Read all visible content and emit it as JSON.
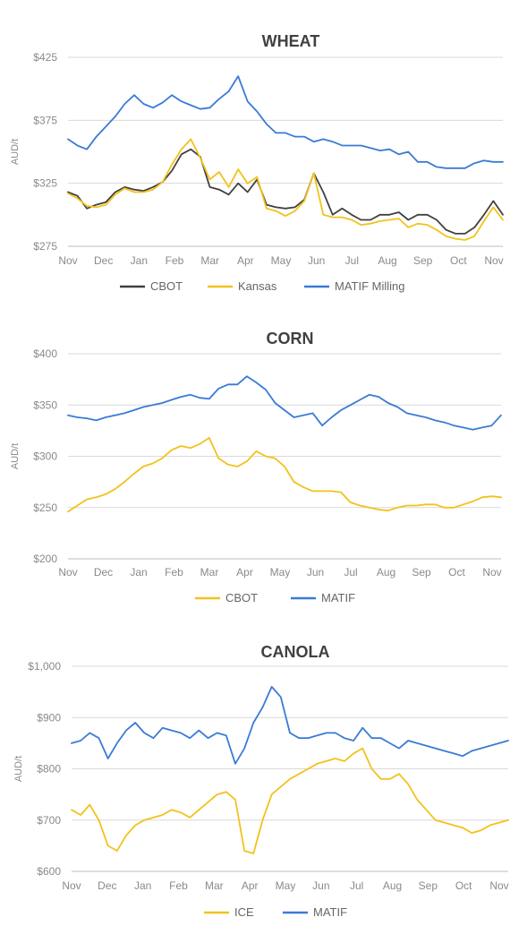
{
  "chart_data": [
    {
      "type": "line",
      "title": "WHEAT",
      "ylabel": "AUD/t",
      "ylim": [
        275,
        425
      ],
      "yticks": [
        275,
        325,
        375,
        425
      ],
      "ytick_labels": [
        "$275",
        "$325",
        "$375",
        "$425"
      ],
      "x_labels": [
        "Nov",
        "Dec",
        "Jan",
        "Feb",
        "Mar",
        "Apr",
        "May",
        "Jun",
        "Jul",
        "Aug",
        "Sep",
        "Oct",
        "Nov"
      ],
      "grid": true,
      "legend": "bottom",
      "series": [
        {
          "name": "CBOT",
          "color": "#404040",
          "values": [
            318,
            315,
            305,
            308,
            310,
            318,
            322,
            320,
            319,
            322,
            326,
            335,
            348,
            352,
            346,
            322,
            320,
            316,
            325,
            318,
            328,
            308,
            306,
            305,
            306,
            312,
            333,
            318,
            300,
            305,
            300,
            296,
            296,
            300,
            300,
            302,
            296,
            300,
            300,
            296,
            288,
            285,
            285,
            290,
            300,
            311,
            300
          ]
        },
        {
          "name": "Kansas",
          "color": "#f2c21b",
          "values": [
            317,
            313,
            307,
            306,
            308,
            316,
            321,
            318,
            318,
            320,
            326,
            340,
            352,
            360,
            345,
            328,
            334,
            322,
            336,
            325,
            330,
            305,
            303,
            299,
            303,
            311,
            333,
            300,
            298,
            298,
            296,
            292,
            293,
            295,
            296,
            297,
            290,
            293,
            292,
            288,
            283,
            281,
            280,
            283,
            295,
            306,
            296
          ]
        },
        {
          "name": "MATIF Milling",
          "color": "#3a7bd5",
          "values": [
            360,
            355,
            352,
            362,
            370,
            378,
            388,
            395,
            388,
            385,
            389,
            395,
            390,
            387,
            384,
            385,
            392,
            398,
            410,
            390,
            382,
            372,
            365,
            365,
            362,
            362,
            358,
            360,
            358,
            355,
            355,
            355,
            353,
            351,
            352,
            348,
            350,
            342,
            342,
            338,
            337,
            337,
            337,
            341,
            343,
            342,
            342
          ]
        }
      ]
    },
    {
      "type": "line",
      "title": "CORN",
      "ylabel": "AUD/t",
      "ylim": [
        200,
        400
      ],
      "yticks": [
        200,
        250,
        300,
        350,
        400
      ],
      "ytick_labels": [
        "$200",
        "$250",
        "$300",
        "$350",
        "$400"
      ],
      "x_labels": [
        "Nov",
        "Dec",
        "Jan",
        "Feb",
        "Mar",
        "Apr",
        "May",
        "Jun",
        "Jul",
        "Aug",
        "Sep",
        "Oct",
        "Nov"
      ],
      "grid": true,
      "legend": "bottom",
      "series": [
        {
          "name": "CBOT",
          "color": "#f2c21b",
          "values": [
            246,
            252,
            258,
            260,
            263,
            268,
            275,
            283,
            290,
            293,
            298,
            306,
            310,
            308,
            312,
            318,
            298,
            292,
            290,
            295,
            305,
            300,
            298,
            290,
            275,
            270,
            266,
            266,
            266,
            265,
            255,
            252,
            250,
            248,
            247,
            250,
            252,
            252,
            253,
            253,
            250,
            250,
            253,
            256,
            260,
            261,
            260
          ]
        },
        {
          "name": "MATIF",
          "color": "#3a7bd5",
          "values": [
            340,
            338,
            337,
            335,
            338,
            340,
            342,
            345,
            348,
            350,
            352,
            355,
            358,
            360,
            357,
            356,
            366,
            370,
            370,
            378,
            372,
            365,
            352,
            345,
            338,
            340,
            342,
            330,
            338,
            345,
            350,
            355,
            360,
            358,
            352,
            348,
            342,
            340,
            338,
            335,
            333,
            330,
            328,
            326,
            328,
            330,
            340
          ]
        }
      ]
    },
    {
      "type": "line",
      "title": "CANOLA",
      "ylabel": "AUD/t",
      "ylim": [
        600,
        1000
      ],
      "yticks": [
        600,
        700,
        800,
        900,
        1000
      ],
      "ytick_labels": [
        "$600",
        "$700",
        "$800",
        "$900",
        "$1,000"
      ],
      "x_labels": [
        "Nov",
        "Dec",
        "Jan",
        "Feb",
        "Mar",
        "Apr",
        "May",
        "Jun",
        "Jul",
        "Aug",
        "Sep",
        "Oct",
        "Nov"
      ],
      "grid": true,
      "legend": "bottom",
      "series": [
        {
          "name": "ICE",
          "color": "#f2c21b",
          "values": [
            720,
            710,
            730,
            700,
            650,
            640,
            670,
            690,
            700,
            705,
            710,
            720,
            715,
            705,
            720,
            735,
            750,
            755,
            740,
            640,
            635,
            700,
            750,
            765,
            780,
            790,
            800,
            810,
            815,
            820,
            815,
            830,
            840,
            800,
            780,
            780,
            790,
            770,
            740,
            720,
            700,
            695,
            690,
            685,
            675,
            680,
            690,
            695,
            700
          ]
        },
        {
          "name": "MATIF",
          "color": "#3a7bd5",
          "values": [
            850,
            855,
            870,
            860,
            820,
            850,
            875,
            890,
            870,
            860,
            880,
            875,
            870,
            860,
            875,
            860,
            870,
            865,
            810,
            840,
            890,
            920,
            960,
            940,
            870,
            860,
            860,
            865,
            870,
            870,
            860,
            855,
            880,
            860,
            860,
            850,
            840,
            855,
            850,
            845,
            840,
            835,
            830,
            825,
            835,
            840,
            845,
            850,
            855
          ]
        }
      ]
    }
  ]
}
